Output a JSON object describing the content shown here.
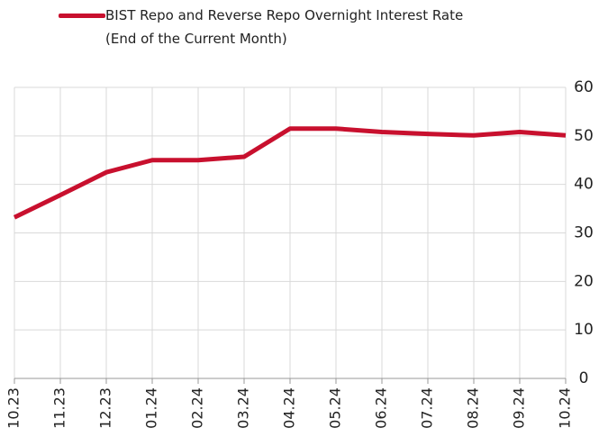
{
  "chart_data": {
    "type": "line",
    "categories": [
      "10.23",
      "11.23",
      "12.23",
      "01.24",
      "02.24",
      "03.24",
      "04.24",
      "05.24",
      "06.24",
      "07.24",
      "08.24",
      "09.24",
      "10.24"
    ],
    "series": [
      {
        "name": "BIST Repo and Reverse Repo Overnight Interest Rate (End of the Current Month)",
        "color": "#c8102e",
        "values": [
          33.2,
          37.8,
          42.5,
          45,
          45,
          45.7,
          51.5,
          51.5,
          50.8,
          50.4,
          50.1,
          50.8,
          50.1
        ]
      }
    ],
    "ylim": [
      0,
      60
    ],
    "yticks": [
      0,
      10,
      20,
      30,
      40,
      50,
      60
    ],
    "grid": true,
    "y_axis_side": "right",
    "legend": "top"
  }
}
